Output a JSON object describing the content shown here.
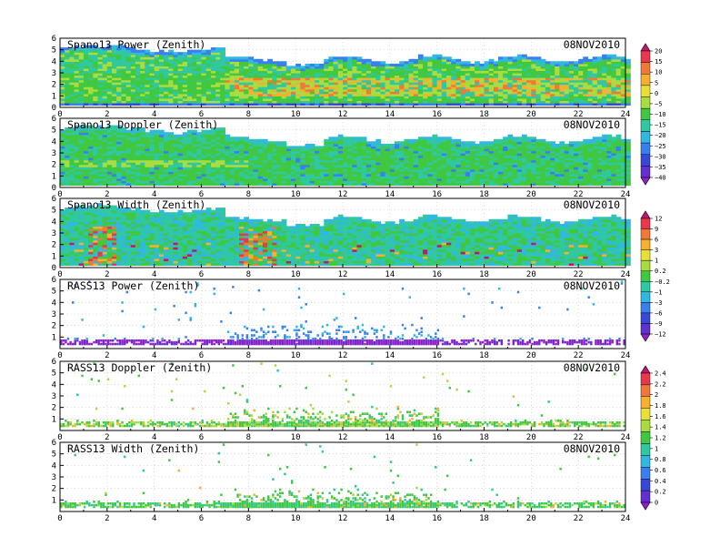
{
  "chart_data": [
    {
      "type": "heatmap",
      "title": "Spano13 Power (Zenith)",
      "date": "08NOV2010",
      "colorbar": "cb1",
      "field": "power",
      "y_ticks": [
        "0",
        "1",
        "2",
        "3",
        "4",
        "5",
        "6"
      ],
      "x_ticks": [
        "0",
        "2",
        "4",
        "6",
        "8",
        "10",
        "12",
        "14",
        "16",
        "18",
        "20",
        "22",
        "24"
      ],
      "xlim": [
        0,
        24
      ],
      "ylim": [
        0,
        6
      ]
    },
    {
      "type": "heatmap",
      "title": "Spano13 Doppler (Zenith)",
      "date": "08NOV2010",
      "colorbar": "cb1",
      "field": "doppler",
      "y_ticks": [
        "0",
        "1",
        "2",
        "3",
        "4",
        "5",
        "6"
      ],
      "x_ticks": [
        "0",
        "2",
        "4",
        "6",
        "8",
        "10",
        "12",
        "14",
        "16",
        "18",
        "20",
        "22",
        "24"
      ],
      "xlim": [
        0,
        24
      ],
      "ylim": [
        0,
        6
      ]
    },
    {
      "type": "heatmap",
      "title": "Spano13 Width (Zenith)",
      "date": "08NOV2010",
      "colorbar": "cb2",
      "field": "width",
      "y_ticks": [
        "0",
        "1",
        "2",
        "3",
        "4",
        "5",
        "6"
      ],
      "x_ticks": [
        "0",
        "2",
        "4",
        "6",
        "8",
        "10",
        "12",
        "14",
        "16",
        "18",
        "20",
        "22",
        "24"
      ],
      "xlim": [
        0,
        24
      ],
      "ylim": [
        0,
        6
      ]
    },
    {
      "type": "scatter",
      "title": "RASS13 Power (Zenith)",
      "date": "08NOV2010",
      "colorbar": "cb2",
      "field": "rpower",
      "y_ticks": [
        "1",
        "2",
        "3",
        "4",
        "5",
        "6"
      ],
      "x_ticks": [
        "0",
        "2",
        "4",
        "6",
        "8",
        "10",
        "12",
        "14",
        "16",
        "18",
        "20",
        "22",
        "24"
      ],
      "xlim": [
        0,
        24
      ],
      "ylim": [
        0,
        6
      ]
    },
    {
      "type": "scatter",
      "title": "RASS13 Doppler (Zenith)",
      "date": "08NOV2010",
      "colorbar": "cb3",
      "field": "rdoppler",
      "y_ticks": [
        "1",
        "2",
        "3",
        "4",
        "5",
        "6"
      ],
      "x_ticks": [
        "0",
        "2",
        "4",
        "6",
        "8",
        "10",
        "12",
        "14",
        "16",
        "18",
        "20",
        "22",
        "24"
      ],
      "xlim": [
        0,
        24
      ],
      "ylim": [
        0,
        6
      ]
    },
    {
      "type": "scatter",
      "title": "RASS13 Width (Zenith)",
      "date": "08NOV2010",
      "colorbar": "cb3",
      "field": "rwidth",
      "y_ticks": [
        "1",
        "2",
        "3",
        "4",
        "5",
        "6"
      ],
      "x_ticks": [
        "0",
        "2",
        "4",
        "6",
        "8",
        "10",
        "12",
        "14",
        "16",
        "18",
        "20",
        "22",
        "24"
      ],
      "xlim": [
        0,
        24
      ],
      "ylim": [
        0,
        6
      ]
    }
  ],
  "colorbars": {
    "cb1": {
      "labels": [
        "20",
        "15",
        "10",
        "5",
        "0",
        "−5",
        "−10",
        "−15",
        "−20",
        "−25",
        "−30",
        "−35",
        "−40"
      ],
      "colors": [
        "#c8146e",
        "#e8384a",
        "#f07838",
        "#f4b030",
        "#e8e038",
        "#a8dc40",
        "#40c840",
        "#30c8a0",
        "#30b8e0",
        "#3880f0",
        "#3848d8",
        "#6030d0",
        "#9020c8"
      ]
    },
    "cb2": {
      "labels": [
        "12",
        "9",
        "6",
        "3",
        "1",
        "0.2",
        "−0.2",
        "−1",
        "−3",
        "−6",
        "−9",
        "−12"
      ],
      "colors": [
        "#c8146e",
        "#e8384a",
        "#f07838",
        "#f4b030",
        "#e8e038",
        "#a8dc40",
        "#40c840",
        "#30c8a0",
        "#30b8e0",
        "#3880f0",
        "#3848d8",
        "#6030d0",
        "#9020c8"
      ]
    },
    "cb3": {
      "labels": [
        "2.4",
        "2.2",
        "2",
        "1.8",
        "1.6",
        "1.4",
        "1.2",
        "1",
        "0.8",
        "0.6",
        "0.4",
        "0.2",
        "0"
      ],
      "colors": [
        "#c8146e",
        "#e8384a",
        "#f07838",
        "#f4b030",
        "#e8e038",
        "#a8dc40",
        "#40c840",
        "#30c8a0",
        "#30b8e0",
        "#3880f0",
        "#3848d8",
        "#6030d0",
        "#9020c8"
      ]
    }
  }
}
